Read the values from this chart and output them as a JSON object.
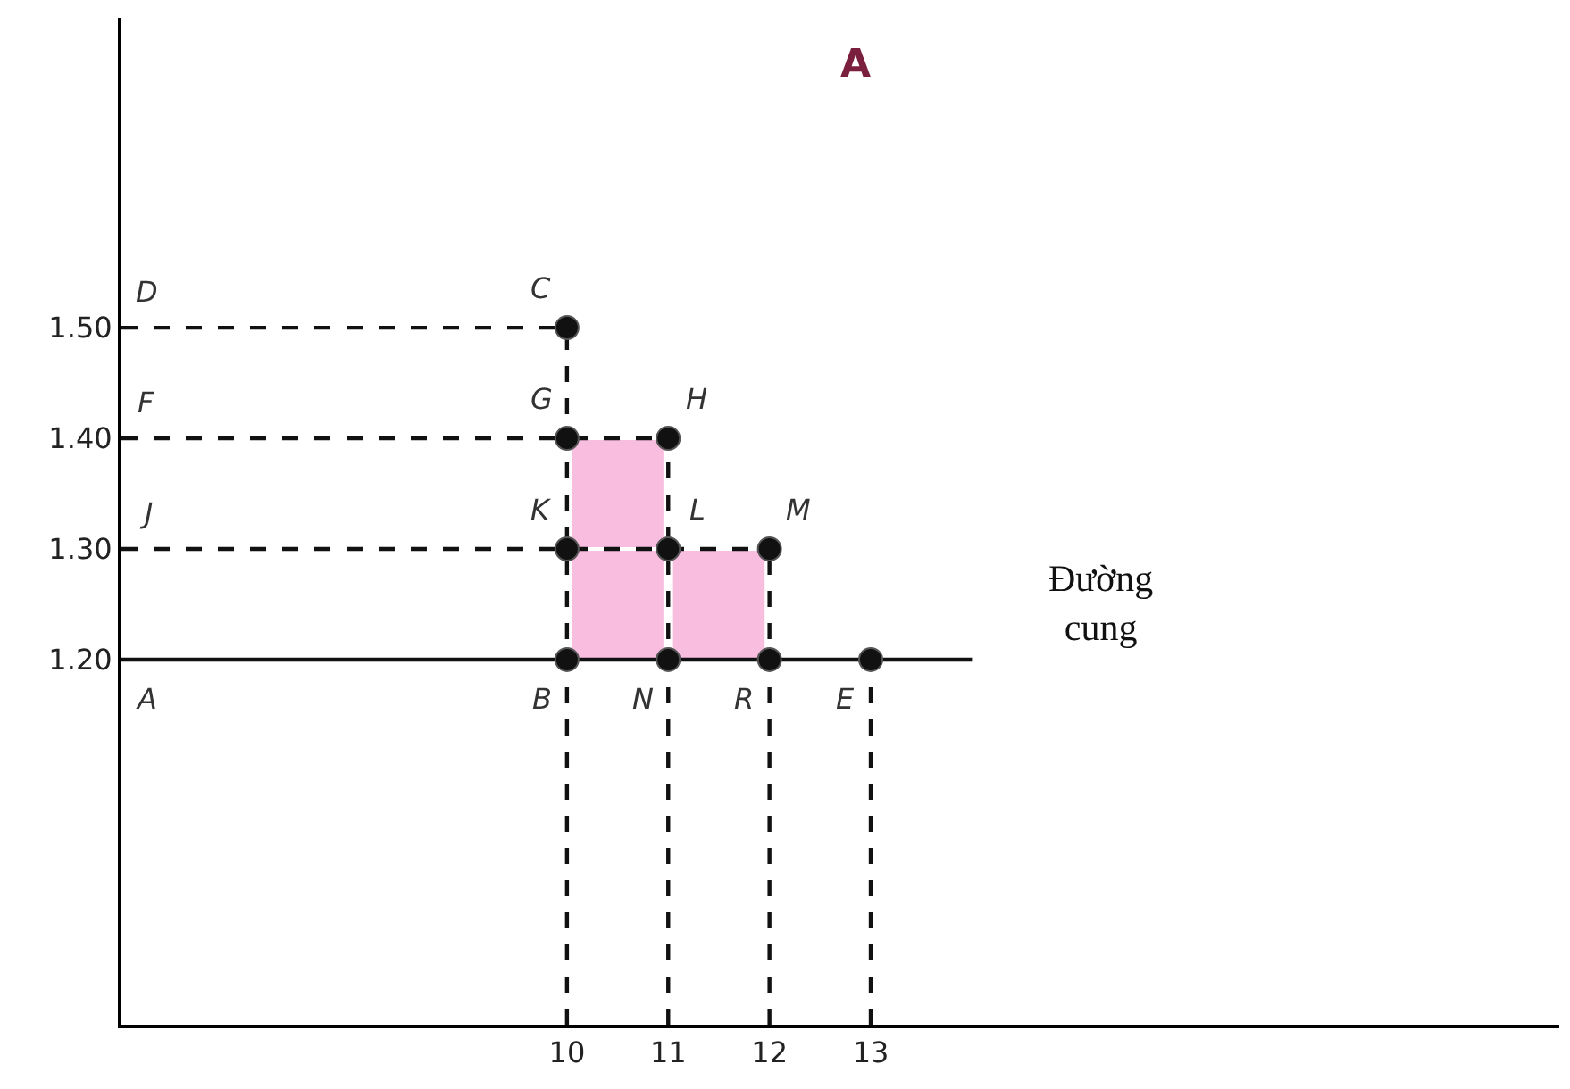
{
  "chart_data": {
    "type": "scatter",
    "title": "A",
    "xlim": [
      5.6,
      19.8
    ],
    "ylim": [
      0.87,
      1.78
    ],
    "xticks": [
      10,
      11,
      12,
      13
    ],
    "yticks": [
      {
        "value": 1.2,
        "label": "1.20"
      },
      {
        "value": 1.3,
        "label": "1.30"
      },
      {
        "value": 1.4,
        "label": "1.40"
      },
      {
        "value": 1.5,
        "label": "1.50"
      }
    ],
    "series": [
      {
        "type": "bar",
        "color": "#f9bde0",
        "x": [
          10.5,
          11.5
        ],
        "base": [
          1.2,
          1.2
        ],
        "values": [
          0.1,
          0.1
        ]
      },
      {
        "type": "bar",
        "color": "#f9bde0",
        "x": [
          10.5
        ],
        "base": [
          1.3
        ],
        "values": [
          0.1
        ]
      },
      {
        "type": "line",
        "color": "#111111",
        "line_style": "solid",
        "marker": "none",
        "x": [
          5.6,
          14
        ],
        "values": [
          1.2,
          1.2
        ]
      },
      {
        "type": "line",
        "color": "#111111",
        "line_style": "dashed",
        "marker": "none",
        "x": [
          5.6,
          10
        ],
        "values": [
          1.5,
          1.5
        ]
      },
      {
        "type": "line",
        "color": "#111111",
        "line_style": "dashed",
        "marker": "none",
        "x": [
          5.6,
          11
        ],
        "values": [
          1.4,
          1.4
        ]
      },
      {
        "type": "line",
        "color": "#111111",
        "line_style": "dashed",
        "marker": "none",
        "x": [
          5.6,
          12
        ],
        "values": [
          1.3,
          1.3
        ]
      },
      {
        "type": "line",
        "color": "#111111",
        "line_style": "dashed",
        "marker": "none",
        "x": [
          10,
          10
        ],
        "values": [
          0.87,
          1.5
        ]
      },
      {
        "type": "line",
        "color": "#111111",
        "line_style": "dashed",
        "marker": "none",
        "x": [
          11,
          11
        ],
        "values": [
          0.87,
          1.4
        ]
      },
      {
        "type": "line",
        "color": "#111111",
        "line_style": "dashed",
        "marker": "none",
        "x": [
          12,
          12
        ],
        "values": [
          0.87,
          1.3
        ]
      },
      {
        "type": "line",
        "color": "#111111",
        "line_style": "dashed",
        "marker": "none",
        "x": [
          13,
          13
        ],
        "values": [
          0.87,
          1.2
        ]
      },
      {
        "color": "#111111",
        "marker": "circle",
        "x": [
          10,
          10,
          11,
          10,
          11,
          12,
          10,
          11,
          12,
          13
        ],
        "values": [
          1.5,
          1.4,
          1.4,
          1.3,
          1.3,
          1.3,
          1.2,
          1.2,
          1.2,
          1.2
        ]
      }
    ],
    "annotations": [
      {
        "text": "D",
        "x": 5.6,
        "y": 1.5
      },
      {
        "text": "F",
        "x": 5.6,
        "y": 1.4
      },
      {
        "text": "J",
        "x": 5.6,
        "y": 1.3
      },
      {
        "text": "A",
        "x": 5.6,
        "y": 1.2
      },
      {
        "text": "C",
        "x": 10,
        "y": 1.5
      },
      {
        "text": "G",
        "x": 10,
        "y": 1.4
      },
      {
        "text": "H",
        "x": 11,
        "y": 1.4
      },
      {
        "text": "K",
        "x": 10,
        "y": 1.3
      },
      {
        "text": "L",
        "x": 11,
        "y": 1.3
      },
      {
        "text": "M",
        "x": 12,
        "y": 1.3
      },
      {
        "text": "B",
        "x": 10,
        "y": 1.2
      },
      {
        "text": "N",
        "x": 11,
        "y": 1.2
      },
      {
        "text": "R",
        "x": 12,
        "y": 1.2
      },
      {
        "text": "E",
        "x": 13,
        "y": 1.2
      },
      "Đường cung"
    ]
  }
}
